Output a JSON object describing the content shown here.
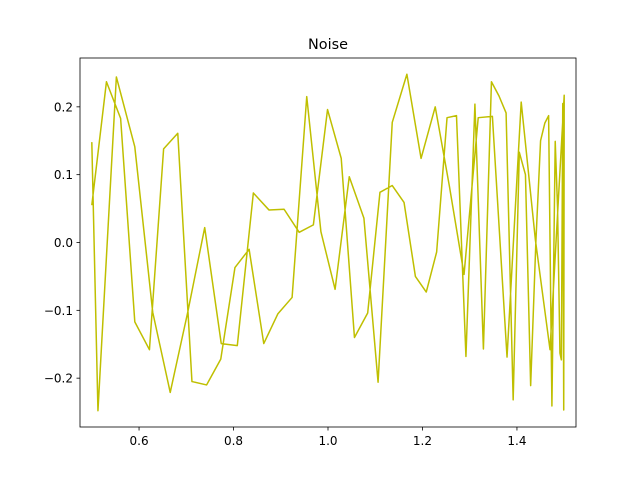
{
  "chart_data": {
    "type": "line",
    "title": "Noise",
    "xlabel": "",
    "ylabel": "",
    "xlim": [
      0.475,
      1.525
    ],
    "ylim": [
      -0.272,
      0.272
    ],
    "xticks": [
      0.6,
      0.8,
      1.0,
      1.2,
      1.4
    ],
    "xtick_labels": [
      "0.6",
      "0.8",
      "1.0",
      "1.2",
      "1.4"
    ],
    "yticks": [
      -0.2,
      -0.1,
      0.0,
      0.1,
      0.2
    ],
    "ytick_labels": [
      "−0.2",
      "−0.1",
      "0.0",
      "0.1",
      "0.2"
    ],
    "grid": false,
    "line_color": "#bfbf00",
    "series": [
      {
        "x": [
          0.5,
          0.531,
          0.561,
          0.591,
          0.622,
          0.652,
          0.682,
          0.712,
          0.743,
          0.773,
          0.803,
          0.833,
          0.864,
          0.894,
          0.924,
          0.955,
          0.985,
          1.015,
          1.045,
          1.076,
          1.106,
          1.136,
          1.167,
          1.197,
          1.227,
          1.257,
          1.288,
          1.318,
          1.348,
          1.379,
          1.409,
          1.439,
          1.47,
          1.5,
          1.5,
          1.499,
          1.497,
          1.494,
          1.491,
          1.486,
          1.481,
          1.474,
          1.467,
          1.459,
          1.45,
          1.44,
          1.429,
          1.418,
          1.405,
          1.392,
          1.377,
          1.362,
          1.346,
          1.329,
          1.311,
          1.292,
          1.272,
          1.252,
          1.23,
          1.208,
          1.185,
          1.161,
          1.136,
          1.11,
          1.084,
          1.056,
          1.028,
          0.999,
          0.969,
          0.939,
          0.907,
          0.875,
          0.842,
          0.808,
          0.774,
          0.739,
          0.703,
          0.666,
          0.629,
          0.591,
          0.552,
          0.513,
          0.5
        ],
        "y": [
          0.055,
          0.237,
          0.183,
          -0.117,
          -0.158,
          0.138,
          0.161,
          -0.205,
          -0.21,
          -0.172,
          -0.037,
          -0.01,
          -0.149,
          -0.105,
          -0.081,
          0.215,
          0.016,
          -0.069,
          0.097,
          0.036,
          -0.206,
          0.177,
          0.248,
          0.124,
          0.2,
          0.083,
          -0.047,
          0.184,
          0.186,
          -0.169,
          0.207,
          0.004,
          -0.158,
          0.217,
          0.2,
          -0.247,
          0.205,
          -0.173,
          -0.163,
          0.05,
          0.149,
          -0.241,
          0.187,
          0.176,
          0.15,
          0.0,
          -0.211,
          0.1,
          0.133,
          -0.232,
          0.191,
          0.216,
          0.237,
          -0.157,
          0.204,
          -0.168,
          0.187,
          0.184,
          -0.014,
          -0.073,
          -0.05,
          0.059,
          0.084,
          0.074,
          -0.104,
          -0.14,
          0.124,
          0.196,
          0.026,
          0.015,
          0.049,
          0.048,
          0.073,
          -0.152,
          -0.149,
          0.022,
          -0.103,
          -0.221,
          -0.103,
          0.141,
          0.244,
          -0.248,
          0.148
        ]
      }
    ]
  }
}
